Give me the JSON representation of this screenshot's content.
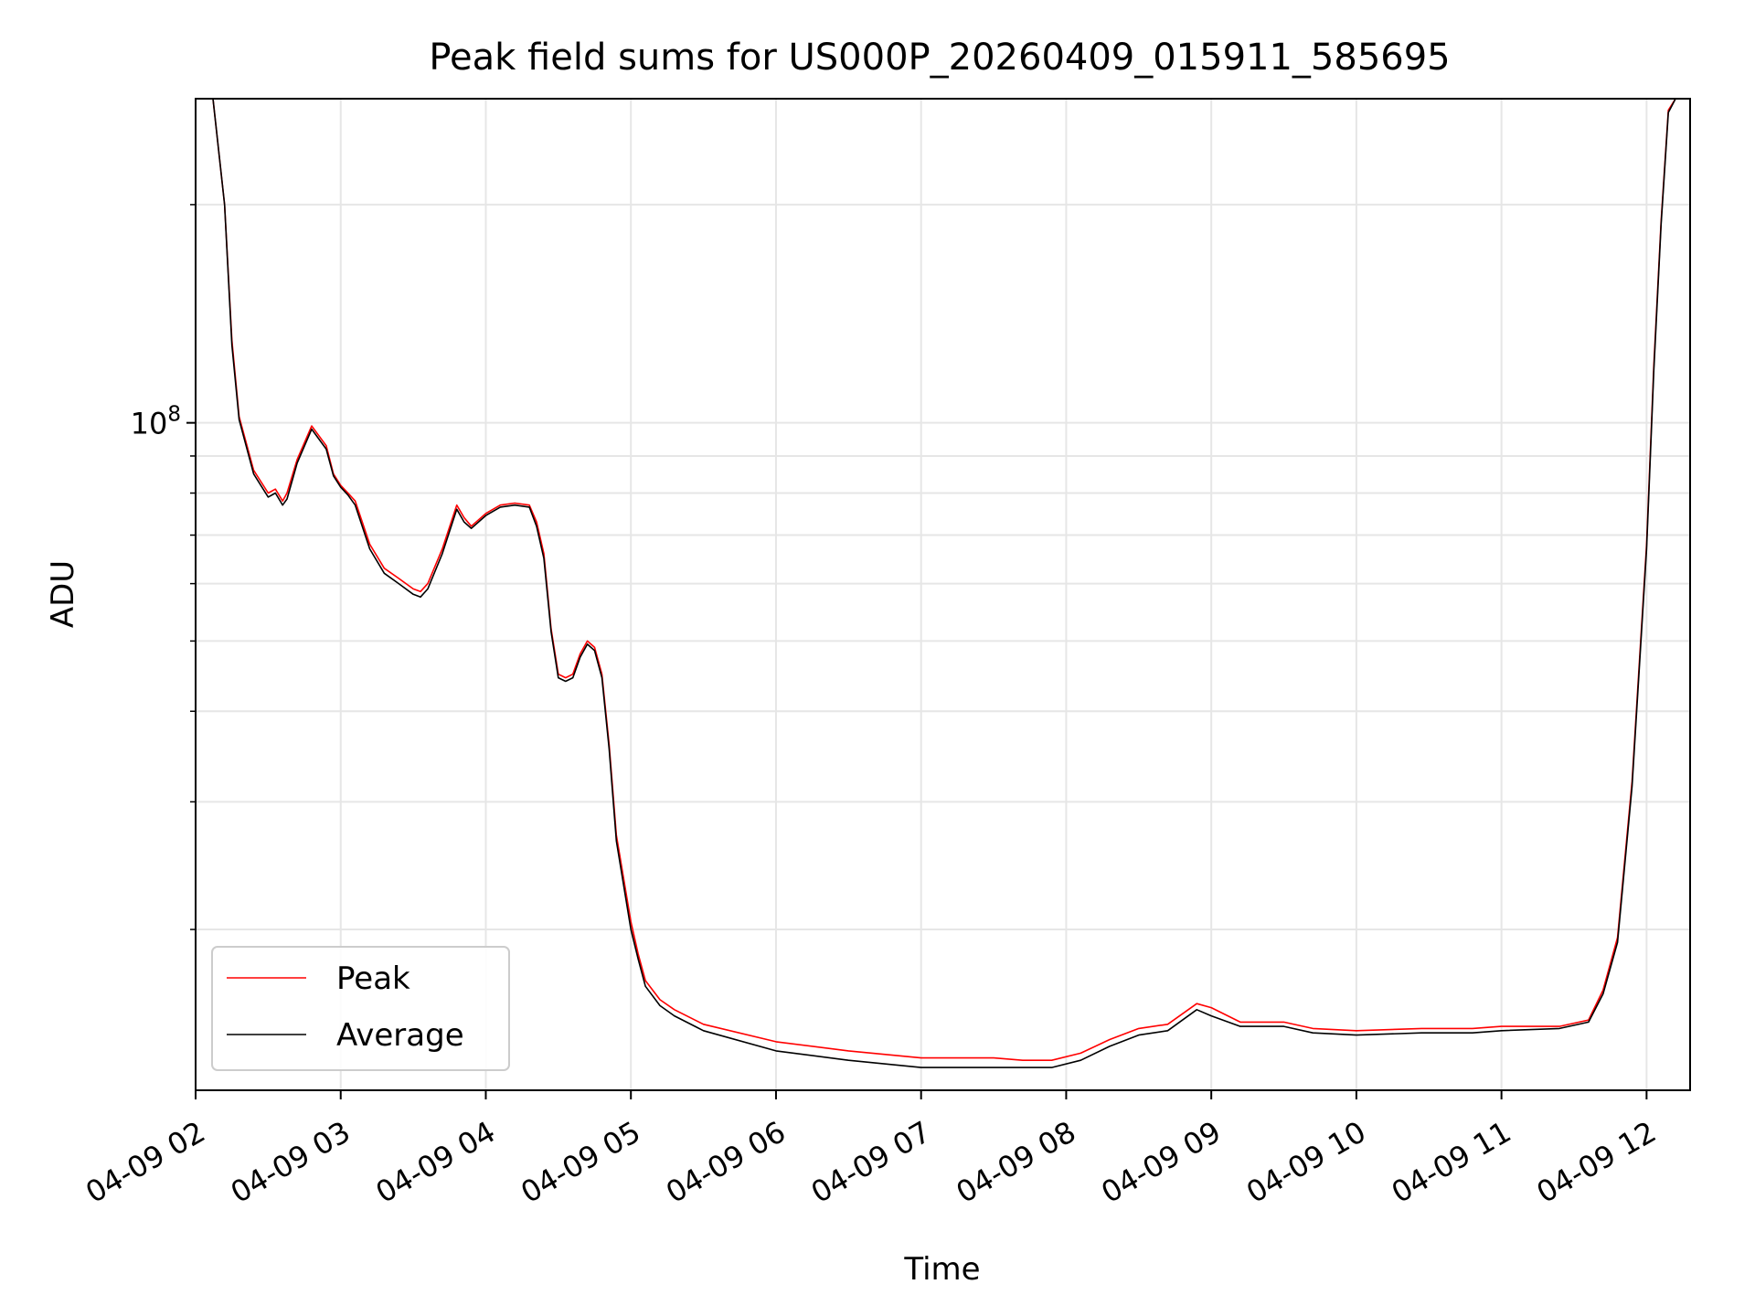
{
  "chart_data": {
    "type": "line",
    "title": "Peak field sums for US000P_20260409_015911_585695",
    "xlabel": "Time",
    "ylabel": "ADU",
    "yscale": "log",
    "xlim_hours": [
      2.0,
      12.3
    ],
    "ylim": [
      12000000,
      280000000
    ],
    "grid": true,
    "legend_location": "lower left",
    "x_ticks": [
      {
        "hour": 2,
        "label": "04-09 02"
      },
      {
        "hour": 3,
        "label": "04-09 03"
      },
      {
        "hour": 4,
        "label": "04-09 04"
      },
      {
        "hour": 5,
        "label": "04-09 05"
      },
      {
        "hour": 6,
        "label": "04-09 06"
      },
      {
        "hour": 7,
        "label": "04-09 07"
      },
      {
        "hour": 8,
        "label": "04-09 08"
      },
      {
        "hour": 9,
        "label": "04-09 09"
      },
      {
        "hour": 10,
        "label": "04-09 10"
      },
      {
        "hour": 11,
        "label": "04-09 11"
      },
      {
        "hour": 12,
        "label": "04-09 12"
      }
    ],
    "y_major_tick": {
      "value": 100000000,
      "label_base": "10",
      "label_exp": "8"
    },
    "y_minor_ticks": [
      20000000,
      30000000,
      40000000,
      50000000,
      60000000,
      70000000,
      80000000,
      90000000,
      200000000
    ],
    "series": [
      {
        "name": "Peak",
        "color": "#ff0000",
        "x": [
          2.0,
          2.12,
          2.2,
          2.25,
          2.3,
          2.4,
          2.5,
          2.55,
          2.6,
          2.63,
          2.7,
          2.8,
          2.9,
          2.95,
          3.0,
          3.05,
          3.1,
          3.2,
          3.3,
          3.4,
          3.5,
          3.55,
          3.6,
          3.7,
          3.8,
          3.85,
          3.9,
          4.0,
          4.1,
          4.2,
          4.3,
          4.35,
          4.4,
          4.45,
          4.5,
          4.55,
          4.6,
          4.65,
          4.7,
          4.75,
          4.8,
          4.85,
          4.9,
          5.0,
          5.05,
          5.1,
          5.2,
          5.3,
          5.5,
          6.0,
          6.5,
          7.0,
          7.5,
          7.7,
          7.9,
          8.1,
          8.3,
          8.5,
          8.7,
          8.9,
          9.0,
          9.2,
          9.5,
          9.7,
          10.0,
          10.45,
          10.5,
          10.8,
          11.0,
          11.4,
          11.6,
          11.7,
          11.8,
          11.9,
          12.0,
          12.05,
          12.1,
          12.15,
          12.2
        ],
        "y": [
          280000000,
          280000000,
          200000000,
          130000000,
          102000000,
          86000000,
          80000000,
          81000000,
          78000000,
          80000000,
          89000000,
          99000000,
          93000000,
          85000000,
          82000000,
          80000000,
          78000000,
          68000000,
          63000000,
          61000000,
          59000000,
          58500000,
          60000000,
          67000000,
          77000000,
          74000000,
          72000000,
          75000000,
          77000000,
          77500000,
          77000000,
          73000000,
          66000000,
          52000000,
          45000000,
          44500000,
          45000000,
          48000000,
          50000000,
          49000000,
          45000000,
          36000000,
          27000000,
          20500000,
          18500000,
          17000000,
          16000000,
          15500000,
          14800000,
          14000000,
          13600000,
          13300000,
          13300000,
          13200000,
          13200000,
          13500000,
          14100000,
          14600000,
          14800000,
          15800000,
          15600000,
          14900000,
          14900000,
          14600000,
          14500000,
          14600000,
          14600000,
          14600000,
          14700000,
          14700000,
          15000000,
          16500000,
          19500000,
          32000000,
          68000000,
          120000000,
          190000000,
          270000000,
          280000000
        ]
      },
      {
        "name": "Average",
        "color": "#000000",
        "x": [
          2.0,
          2.12,
          2.2,
          2.25,
          2.3,
          2.4,
          2.5,
          2.55,
          2.6,
          2.63,
          2.7,
          2.8,
          2.9,
          2.95,
          3.0,
          3.05,
          3.1,
          3.2,
          3.3,
          3.4,
          3.5,
          3.55,
          3.6,
          3.7,
          3.8,
          3.85,
          3.9,
          4.0,
          4.1,
          4.2,
          4.3,
          4.35,
          4.4,
          4.45,
          4.5,
          4.55,
          4.6,
          4.65,
          4.7,
          4.75,
          4.8,
          4.85,
          4.9,
          5.0,
          5.05,
          5.1,
          5.2,
          5.3,
          5.5,
          6.0,
          6.5,
          7.0,
          7.5,
          7.7,
          7.9,
          8.1,
          8.3,
          8.5,
          8.7,
          8.9,
          9.0,
          9.2,
          9.5,
          9.7,
          10.0,
          10.45,
          10.5,
          10.8,
          11.0,
          11.4,
          11.6,
          11.7,
          11.8,
          11.9,
          12.0,
          12.05,
          12.1,
          12.15,
          12.2
        ],
        "y": [
          280000000,
          280000000,
          200000000,
          128000000,
          101000000,
          85000000,
          79000000,
          80000000,
          77000000,
          78500000,
          88000000,
          98000000,
          92000000,
          84500000,
          81500000,
          79500000,
          77000000,
          67000000,
          62000000,
          60000000,
          58000000,
          57500000,
          59000000,
          66000000,
          76000000,
          73000000,
          71500000,
          74500000,
          76500000,
          77000000,
          76500000,
          72000000,
          65000000,
          51500000,
          44500000,
          44000000,
          44500000,
          47500000,
          49500000,
          48500000,
          44500000,
          35500000,
          26500000,
          20000000,
          18200000,
          16700000,
          15700000,
          15200000,
          14500000,
          13600000,
          13200000,
          12900000,
          12900000,
          12900000,
          12900000,
          13200000,
          13800000,
          14300000,
          14500000,
          15500000,
          15200000,
          14700000,
          14700000,
          14400000,
          14300000,
          14400000,
          14400000,
          14400000,
          14500000,
          14600000,
          14900000,
          16300000,
          19200000,
          31500000,
          67000000,
          118000000,
          188000000,
          268000000,
          280000000
        ]
      }
    ]
  }
}
